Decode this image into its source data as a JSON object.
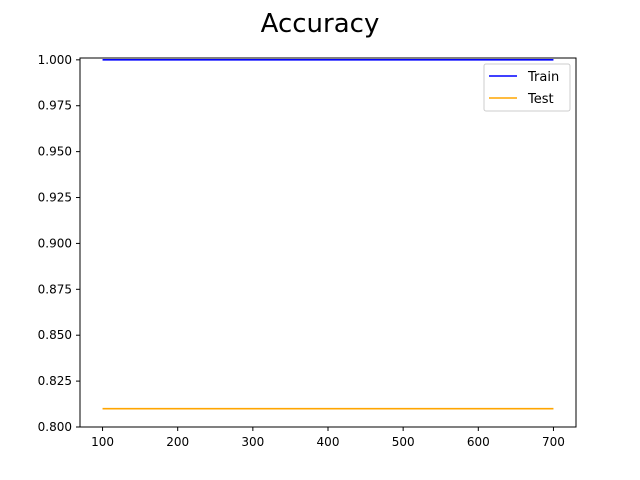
{
  "chart_data": {
    "type": "line",
    "title": "Accuracy",
    "xlabel": "",
    "ylabel": "",
    "x": [
      100,
      200,
      300,
      400,
      500,
      600,
      700
    ],
    "xticks": [
      100,
      200,
      300,
      400,
      500,
      600,
      700
    ],
    "yticks": [
      "0.800",
      "0.825",
      "0.850",
      "0.875",
      "0.900",
      "0.925",
      "0.950",
      "0.975",
      "1.000"
    ],
    "xlim": [
      70,
      730
    ],
    "ylim": [
      0.8,
      1.001
    ],
    "grid": false,
    "legend_position": "top-right",
    "series": [
      {
        "name": "Train",
        "color": "#0000ff",
        "values": [
          1.0,
          1.0,
          1.0,
          1.0,
          1.0,
          1.0,
          1.0
        ]
      },
      {
        "name": "Test",
        "color": "#ffa500",
        "values": [
          0.81,
          0.81,
          0.81,
          0.81,
          0.81,
          0.81,
          0.81
        ]
      }
    ]
  }
}
